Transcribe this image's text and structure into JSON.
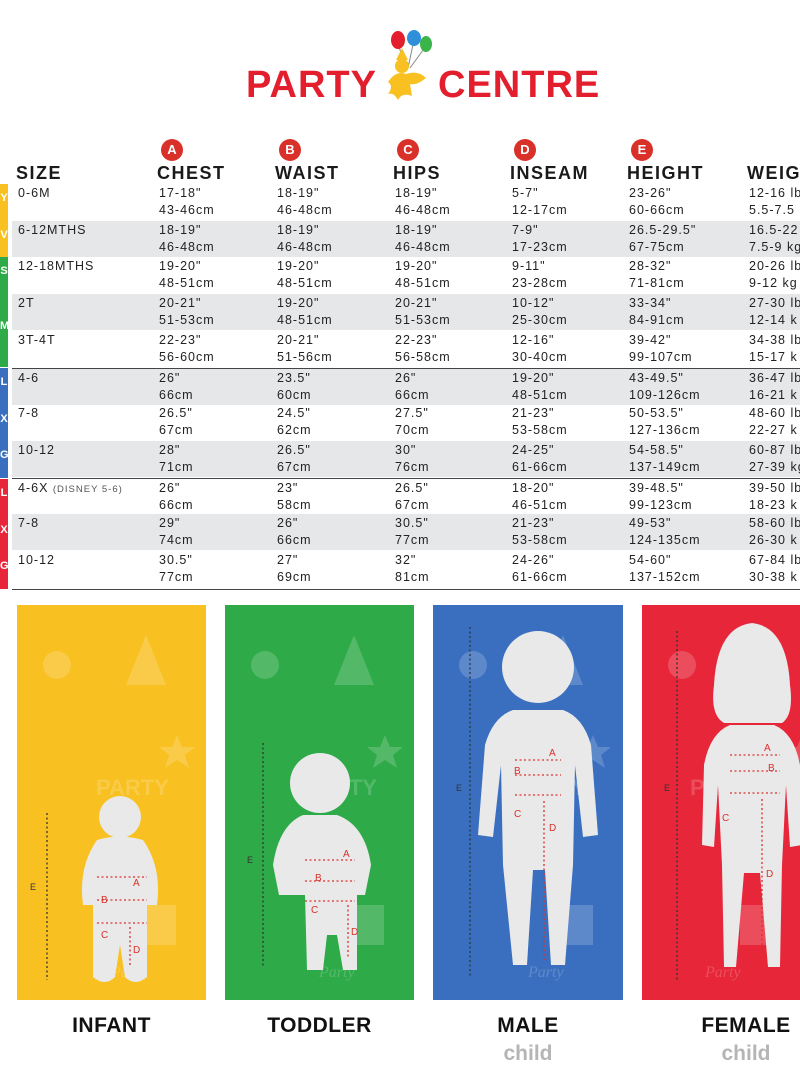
{
  "brand": {
    "name_left": "PARTY",
    "name_right": "CENTRE"
  },
  "colors": {
    "brand_red": "#e31e2d",
    "badge_red": "#d9312a",
    "infant_yellow": "#f8c020",
    "toddler_green": "#2eaa48",
    "male_blue": "#3a6fc0",
    "female_red": "#e7263a"
  },
  "columns": [
    {
      "letter": "",
      "label": "SIZE"
    },
    {
      "letter": "A",
      "label": "CHEST"
    },
    {
      "letter": "B",
      "label": "WAIST"
    },
    {
      "letter": "C",
      "label": "HIPS"
    },
    {
      "letter": "D",
      "label": "INSEAM"
    },
    {
      "letter": "E",
      "label": "HEIGHT"
    },
    {
      "letter": "",
      "label": "WEIG"
    }
  ],
  "rows": [
    {
      "size": "0-6M",
      "note": "",
      "chest": [
        "17-18\"",
        "43-46cm"
      ],
      "waist": [
        "18-19\"",
        "46-48cm"
      ],
      "hips": [
        "18-19\"",
        "46-48cm"
      ],
      "inseam": [
        "5-7\"",
        "12-17cm"
      ],
      "height": [
        "23-26\"",
        "60-66cm"
      ],
      "weight": [
        "12-16 lb",
        "5.5-7.5"
      ]
    },
    {
      "size": "6-12MTHS",
      "note": "",
      "chest": [
        "18-19\"",
        "46-48cm"
      ],
      "waist": [
        "18-19\"",
        "46-48cm"
      ],
      "hips": [
        "18-19\"",
        "46-48cm"
      ],
      "inseam": [
        "7-9\"",
        "17-23cm"
      ],
      "height": [
        "26.5-29.5\"",
        "67-75cm"
      ],
      "weight": [
        "16.5-22",
        "7.5-9 kg"
      ]
    },
    {
      "size": "12-18MTHS",
      "note": "",
      "chest": [
        "19-20\"",
        "48-51cm"
      ],
      "waist": [
        "19-20\"",
        "48-51cm"
      ],
      "hips": [
        "19-20\"",
        "48-51cm"
      ],
      "inseam": [
        "9-11\"",
        "23-28cm"
      ],
      "height": [
        "28-32\"",
        "71-81cm"
      ],
      "weight": [
        "20-26 lb",
        "9-12 kg"
      ]
    },
    {
      "size": "2T",
      "note": "",
      "chest": [
        "20-21\"",
        "51-53cm"
      ],
      "waist": [
        "19-20\"",
        "48-51cm"
      ],
      "hips": [
        "20-21\"",
        "51-53cm"
      ],
      "inseam": [
        "10-12\"",
        "25-30cm"
      ],
      "height": [
        "33-34\"",
        "84-91cm"
      ],
      "weight": [
        "27-30 lb",
        "12-14 k"
      ]
    },
    {
      "size": "3T-4T",
      "note": "",
      "chest": [
        "22-23\"",
        "56-60cm"
      ],
      "waist": [
        "20-21\"",
        "51-56cm"
      ],
      "hips": [
        "22-23\"",
        "56-58cm"
      ],
      "inseam": [
        "12-16\"",
        "30-40cm"
      ],
      "height": [
        "39-42\"",
        "99-107cm"
      ],
      "weight": [
        "34-38 lb",
        "15-17 k"
      ]
    },
    {
      "size": "4-6",
      "note": "",
      "chest": [
        "26\"",
        "66cm"
      ],
      "waist": [
        "23.5\"",
        "60cm"
      ],
      "hips": [
        "26\"",
        "66cm"
      ],
      "inseam": [
        "19-20\"",
        "48-51cm"
      ],
      "height": [
        "43-49.5\"",
        "109-126cm"
      ],
      "weight": [
        "36-47 lb",
        "16-21 k"
      ]
    },
    {
      "size": "7-8",
      "note": "",
      "chest": [
        "26.5\"",
        "67cm"
      ],
      "waist": [
        "24.5\"",
        "62cm"
      ],
      "hips": [
        "27.5\"",
        "70cm"
      ],
      "inseam": [
        "21-23\"",
        "53-58cm"
      ],
      "height": [
        "50-53.5\"",
        "127-136cm"
      ],
      "weight": [
        "48-60 lb",
        "22-27 k"
      ]
    },
    {
      "size": "10-12",
      "note": "",
      "chest": [
        "28\"",
        "71cm"
      ],
      "waist": [
        "26.5\"",
        "67cm"
      ],
      "hips": [
        "30\"",
        "76cm"
      ],
      "inseam": [
        "24-25\"",
        "61-66cm"
      ],
      "height": [
        "54-58.5\"",
        "137-149cm"
      ],
      "weight": [
        "60-87 lb",
        "27-39 kg"
      ]
    },
    {
      "size": "4-6X",
      "note": "(DISNEY 5-6)",
      "chest": [
        "26\"",
        "66cm"
      ],
      "waist": [
        "23\"",
        "58cm"
      ],
      "hips": [
        "26.5\"",
        "67cm"
      ],
      "inseam": [
        "18-20\"",
        "46-51cm"
      ],
      "height": [
        "39-48.5\"",
        "99-123cm"
      ],
      "weight": [
        "39-50 lb",
        "18-23 k"
      ]
    },
    {
      "size": "7-8",
      "note": "",
      "chest": [
        "29\"",
        "74cm"
      ],
      "waist": [
        "26\"",
        "66cm"
      ],
      "hips": [
        "30.5\"",
        "77cm"
      ],
      "inseam": [
        "21-23\"",
        "53-58cm"
      ],
      "height": [
        "49-53\"",
        "124-135cm"
      ],
      "weight": [
        "58-60 lb",
        "26-30 k"
      ]
    },
    {
      "size": "10-12",
      "note": "",
      "chest": [
        "30.5\"",
        "77cm"
      ],
      "waist": [
        "27\"",
        "69cm"
      ],
      "hips": [
        "32\"",
        "81cm"
      ],
      "inseam": [
        "24-26\"",
        "61-66cm"
      ],
      "height": [
        "54-60\"",
        "137-152cm"
      ],
      "weight": [
        "67-84 lb",
        "30-38 k"
      ]
    }
  ],
  "side_tab_letters": [
    "Y",
    "V",
    "S",
    "M",
    "L",
    "X",
    "G",
    "L",
    "X",
    "G"
  ],
  "figures": [
    {
      "caption": "INFANT",
      "subcaption": ""
    },
    {
      "caption": "TODDLER",
      "subcaption": ""
    },
    {
      "caption": "MALE",
      "subcaption": "child"
    },
    {
      "caption": "FEMALE",
      "subcaption": "child"
    }
  ],
  "figure_markers": [
    "A",
    "B",
    "C",
    "D",
    "E"
  ],
  "background_words": {
    "party": "PARTY",
    "party_script": "Party"
  }
}
